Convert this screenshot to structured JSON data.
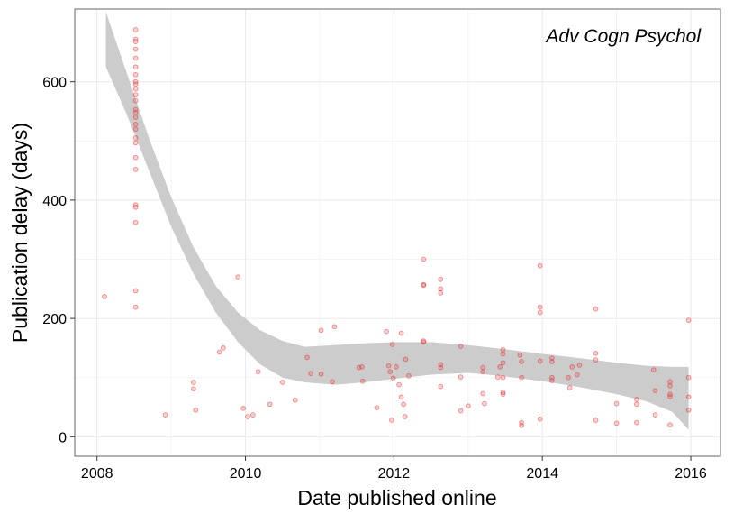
{
  "chart_data": {
    "type": "scatter",
    "title": "",
    "annotation": "Adv Cogn Psychol",
    "xlabel": "Date published online",
    "ylabel": "Publication delay (days)",
    "xlim": [
      2007.7,
      2016.4
    ],
    "ylim": [
      -33,
      723
    ],
    "x_ticks": [
      2008,
      2010,
      2012,
      2014,
      2016
    ],
    "y_ticks": [
      0,
      200,
      400,
      600
    ],
    "x_tick_labels": [
      "2008",
      "2010",
      "2012",
      "2014",
      "2016"
    ],
    "y_tick_labels": [
      "0",
      "200",
      "400",
      "600"
    ],
    "grid": true,
    "legend": "none",
    "point_color": "#e8292b",
    "band_color": "#cccccc",
    "points": [
      [
        2008.1,
        237
      ],
      [
        2008.52,
        688
      ],
      [
        2008.52,
        672
      ],
      [
        2008.52,
        668
      ],
      [
        2008.52,
        655
      ],
      [
        2008.52,
        640
      ],
      [
        2008.52,
        625
      ],
      [
        2008.52,
        612
      ],
      [
        2008.52,
        600
      ],
      [
        2008.52,
        596
      ],
      [
        2008.52,
        588
      ],
      [
        2008.52,
        578
      ],
      [
        2008.52,
        568
      ],
      [
        2008.52,
        553
      ],
      [
        2008.52,
        548
      ],
      [
        2008.52,
        540
      ],
      [
        2008.52,
        528
      ],
      [
        2008.52,
        520
      ],
      [
        2008.52,
        505
      ],
      [
        2008.52,
        497
      ],
      [
        2008.52,
        472
      ],
      [
        2008.52,
        452
      ],
      [
        2008.52,
        392
      ],
      [
        2008.52,
        388
      ],
      [
        2008.52,
        362
      ],
      [
        2008.52,
        247
      ],
      [
        2008.52,
        219
      ],
      [
        2008.92,
        37
      ],
      [
        2009.3,
        92
      ],
      [
        2009.3,
        81
      ],
      [
        2009.33,
        45
      ],
      [
        2009.65,
        143
      ],
      [
        2009.7,
        150
      ],
      [
        2009.9,
        270
      ],
      [
        2009.97,
        48
      ],
      [
        2010.03,
        34
      ],
      [
        2010.1,
        37
      ],
      [
        2010.17,
        110
      ],
      [
        2010.33,
        55
      ],
      [
        2010.5,
        92
      ],
      [
        2010.67,
        62
      ],
      [
        2010.83,
        134
      ],
      [
        2010.88,
        107
      ],
      [
        2011.02,
        106
      ],
      [
        2011.02,
        180
      ],
      [
        2011.17,
        93
      ],
      [
        2011.2,
        186
      ],
      [
        2011.53,
        117
      ],
      [
        2011.57,
        118
      ],
      [
        2011.58,
        94
      ],
      [
        2011.77,
        49
      ],
      [
        2011.9,
        178
      ],
      [
        2011.93,
        120
      ],
      [
        2011.95,
        110
      ],
      [
        2011.97,
        28
      ],
      [
        2011.98,
        156
      ],
      [
        2011.99,
        99
      ],
      [
        2012.03,
        118
      ],
      [
        2012.07,
        88
      ],
      [
        2012.1,
        175
      ],
      [
        2012.1,
        67
      ],
      [
        2012.13,
        55
      ],
      [
        2012.15,
        34
      ],
      [
        2012.16,
        131
      ],
      [
        2012.2,
        103
      ],
      [
        2012.4,
        300
      ],
      [
        2012.4,
        257
      ],
      [
        2012.4,
        256
      ],
      [
        2012.4,
        162
      ],
      [
        2012.4,
        160
      ],
      [
        2012.63,
        266
      ],
      [
        2012.63,
        250
      ],
      [
        2012.63,
        243
      ],
      [
        2012.63,
        122
      ],
      [
        2012.63,
        117
      ],
      [
        2012.63,
        85
      ],
      [
        2012.9,
        153
      ],
      [
        2012.9,
        101
      ],
      [
        2012.9,
        44
      ],
      [
        2013.0,
        52
      ],
      [
        2013.2,
        117
      ],
      [
        2013.2,
        110
      ],
      [
        2013.2,
        73
      ],
      [
        2013.22,
        56
      ],
      [
        2013.4,
        101
      ],
      [
        2013.43,
        118
      ],
      [
        2013.47,
        147
      ],
      [
        2013.47,
        140
      ],
      [
        2013.47,
        125
      ],
      [
        2013.47,
        100
      ],
      [
        2013.47,
        75
      ],
      [
        2013.47,
        72
      ],
      [
        2013.7,
        138
      ],
      [
        2013.72,
        127
      ],
      [
        2013.72,
        100
      ],
      [
        2013.72,
        24
      ],
      [
        2013.72,
        19
      ],
      [
        2013.97,
        289
      ],
      [
        2013.97,
        219
      ],
      [
        2013.97,
        210
      ],
      [
        2013.97,
        128
      ],
      [
        2013.97,
        30
      ],
      [
        2014.13,
        133
      ],
      [
        2014.13,
        127
      ],
      [
        2014.13,
        100
      ],
      [
        2014.13,
        95
      ],
      [
        2014.35,
        100
      ],
      [
        2014.37,
        83
      ],
      [
        2014.4,
        118
      ],
      [
        2014.47,
        105
      ],
      [
        2014.5,
        121
      ],
      [
        2014.72,
        216
      ],
      [
        2014.72,
        141
      ],
      [
        2014.72,
        130
      ],
      [
        2014.72,
        28
      ],
      [
        2015.0,
        56
      ],
      [
        2015.0,
        23
      ],
      [
        2015.27,
        63
      ],
      [
        2015.27,
        55
      ],
      [
        2015.27,
        24
      ],
      [
        2015.5,
        113
      ],
      [
        2015.52,
        78
      ],
      [
        2015.52,
        37
      ],
      [
        2015.72,
        93
      ],
      [
        2015.72,
        86
      ],
      [
        2015.72,
        72
      ],
      [
        2015.72,
        68
      ],
      [
        2015.72,
        20
      ],
      [
        2015.97,
        197
      ],
      [
        2015.97,
        100
      ],
      [
        2015.97,
        67
      ],
      [
        2015.97,
        45
      ]
    ],
    "smooth_band": {
      "x": [
        2008.12,
        2008.4,
        2008.7,
        2009.0,
        2009.3,
        2009.6,
        2009.9,
        2010.2,
        2010.5,
        2010.8,
        2011.2,
        2011.6,
        2012.0,
        2012.5,
        2013.0,
        2013.5,
        2014.0,
        2014.5,
        2015.0,
        2015.4,
        2015.75,
        2015.97
      ],
      "upper": [
        718,
        615,
        505,
        405,
        320,
        255,
        210,
        180,
        162,
        152,
        155,
        158,
        160,
        160,
        155,
        148,
        140,
        133,
        125,
        120,
        118,
        118
      ],
      "lower": [
        625,
        545,
        450,
        355,
        275,
        210,
        160,
        122,
        100,
        92,
        88,
        92,
        98,
        105,
        108,
        102,
        94,
        84,
        72,
        60,
        42,
        12
      ]
    }
  }
}
